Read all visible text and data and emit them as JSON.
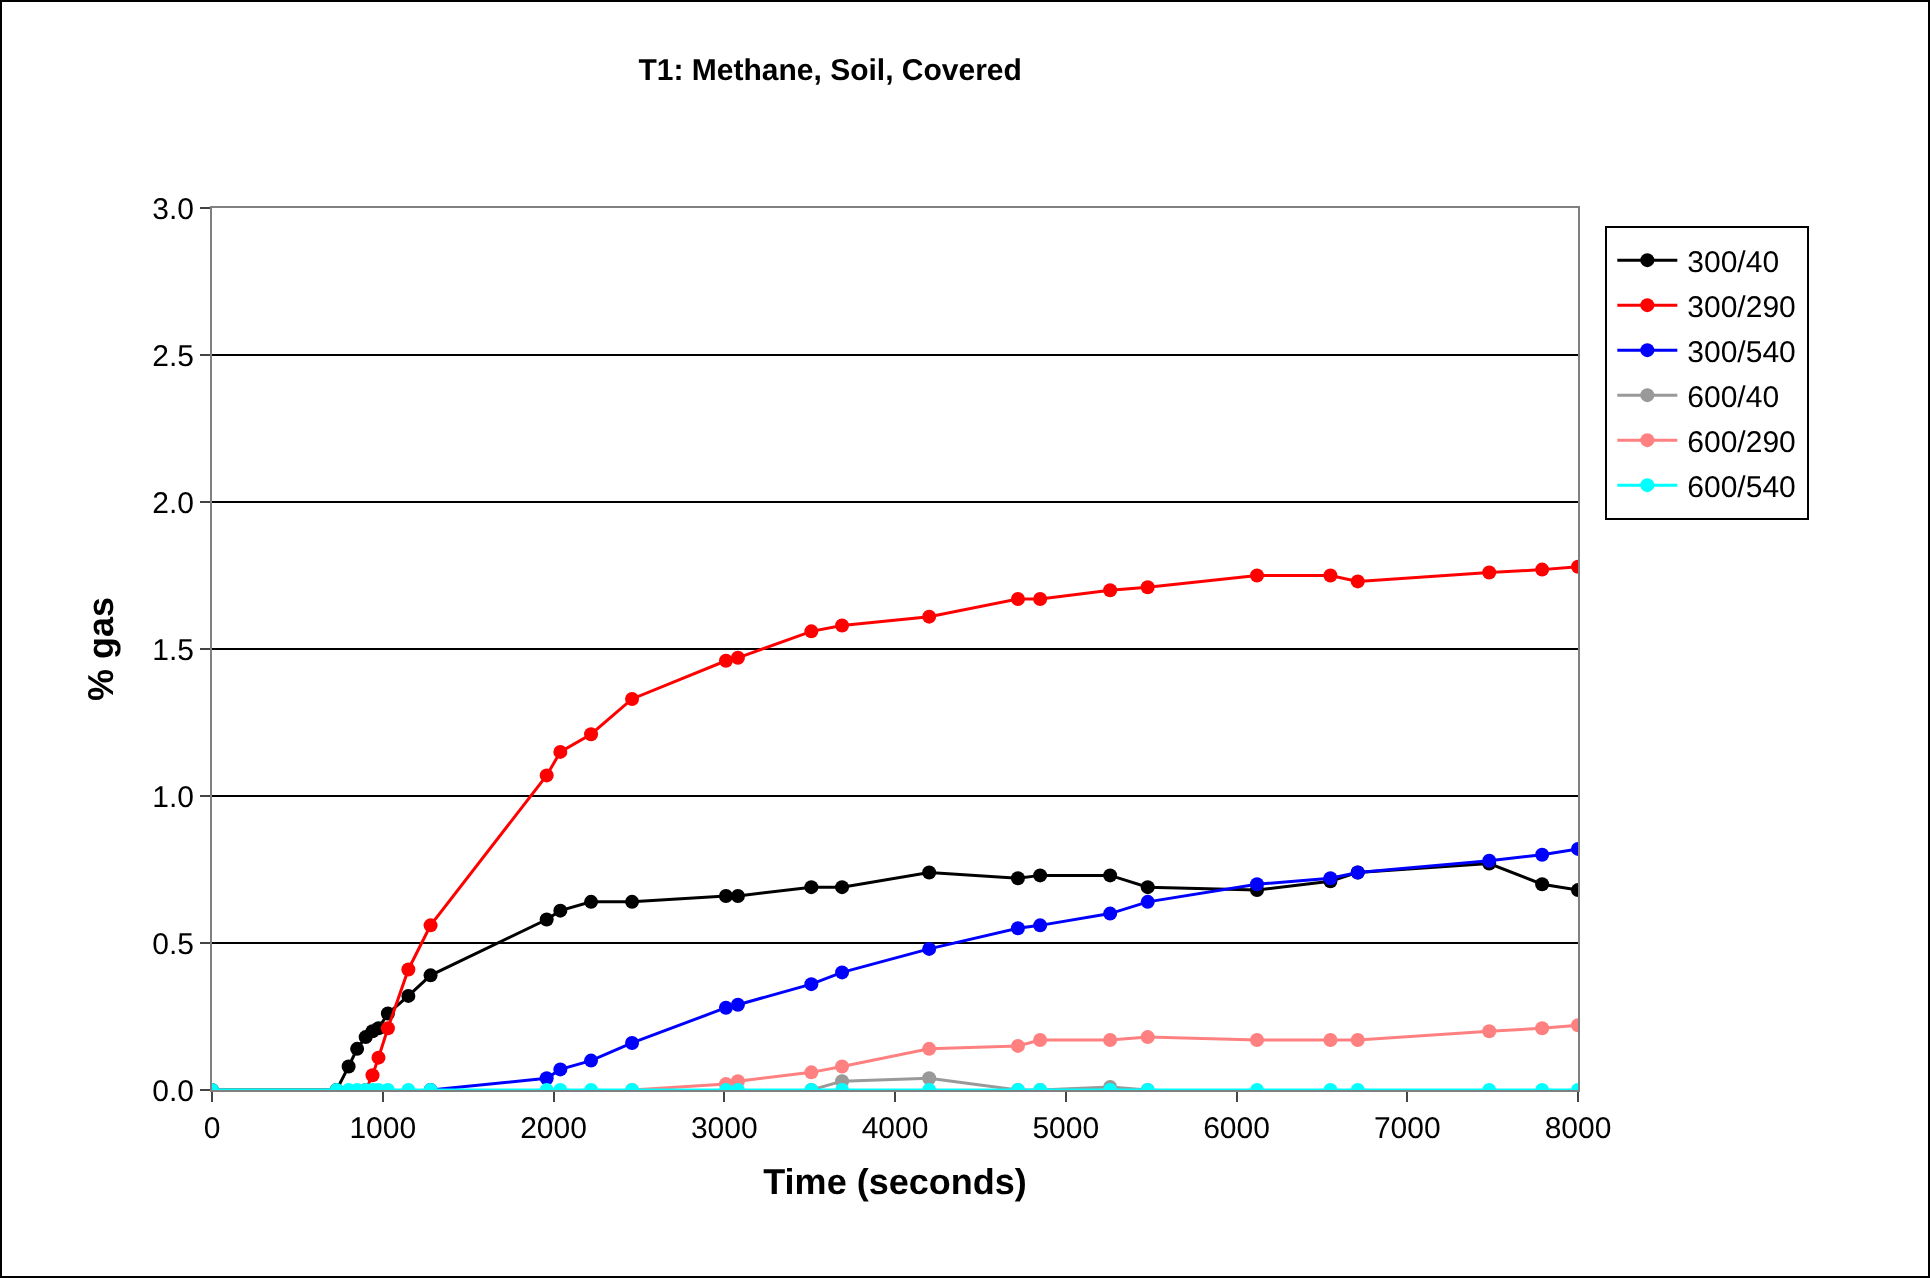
{
  "chart_data": {
    "type": "line",
    "title": "T1: Methane, Soil, Covered",
    "xlabel": "Time (seconds)",
    "ylabel": "% gas",
    "x": [
      0,
      730,
      800,
      850,
      900,
      940,
      975,
      1030,
      1150,
      1280,
      1960,
      2040,
      2220,
      2460,
      3010,
      3080,
      3510,
      3690,
      4200,
      4720,
      4850,
      5260,
      5480,
      6120,
      6550,
      6710,
      7480,
      7790,
      8000
    ],
    "series": [
      {
        "name": "300/40",
        "color": "#000000",
        "values": [
          0,
          0,
          0.08,
          0.14,
          0.18,
          0.2,
          0.21,
          0.26,
          0.32,
          0.39,
          0.58,
          0.61,
          0.64,
          0.64,
          0.66,
          0.66,
          0.69,
          0.69,
          0.74,
          0.72,
          0.73,
          0.73,
          0.69,
          0.68,
          0.71,
          0.74,
          0.77,
          0.7,
          0.68
        ]
      },
      {
        "name": "300/290",
        "color": "#ff0000",
        "values": [
          null,
          null,
          null,
          null,
          0,
          0.05,
          0.11,
          0.21,
          0.41,
          0.56,
          1.07,
          1.15,
          1.21,
          1.33,
          1.46,
          1.47,
          1.56,
          1.58,
          1.61,
          1.67,
          1.67,
          1.7,
          1.71,
          1.75,
          1.75,
          1.73,
          1.76,
          1.77,
          1.78
        ]
      },
      {
        "name": "300/540",
        "color": "#0000ff",
        "values": [
          null,
          null,
          null,
          null,
          null,
          null,
          null,
          null,
          null,
          0,
          0.04,
          0.07,
          0.1,
          0.16,
          0.28,
          0.29,
          0.36,
          0.4,
          0.48,
          0.55,
          0.56,
          0.6,
          0.64,
          0.7,
          0.72,
          0.74,
          0.78,
          0.8,
          0.82
        ]
      },
      {
        "name": "600/40",
        "color": "#999999",
        "values": [
          null,
          null,
          null,
          null,
          null,
          null,
          null,
          null,
          null,
          null,
          null,
          null,
          null,
          null,
          null,
          null,
          0,
          0.03,
          0.04,
          0,
          0,
          0.01,
          0,
          null,
          null,
          null,
          null,
          null,
          null
        ]
      },
      {
        "name": "600/290",
        "color": "#ff8080",
        "values": [
          null,
          null,
          null,
          null,
          null,
          null,
          null,
          null,
          null,
          null,
          null,
          null,
          null,
          0,
          0.02,
          0.03,
          0.06,
          0.08,
          0.14,
          0.15,
          0.17,
          0.17,
          0.18,
          0.17,
          0.17,
          0.17,
          0.2,
          0.21,
          0.22
        ]
      },
      {
        "name": "600/540",
        "color": "#00ffff",
        "values": [
          0,
          0,
          0,
          0,
          0,
          0,
          0,
          0,
          0,
          0,
          0,
          0,
          0,
          0,
          0,
          0,
          0,
          0,
          0,
          0,
          0,
          0,
          0,
          0,
          0,
          0,
          0,
          0,
          0
        ]
      }
    ],
    "xlim": [
      0,
      8000
    ],
    "xticks": [
      0,
      1000,
      2000,
      3000,
      4000,
      5000,
      6000,
      7000,
      8000
    ],
    "ylim": [
      0,
      3
    ],
    "yticks": [
      {
        "value": 0,
        "label": "0.0"
      },
      {
        "value": 0.5,
        "label": "0.5"
      },
      {
        "value": 1,
        "label": "1.0"
      },
      {
        "value": 1.5,
        "label": "1.5"
      },
      {
        "value": 2,
        "label": "2.0"
      },
      {
        "value": 2.5,
        "label": "2.5"
      },
      {
        "value": 3,
        "label": "3.0"
      }
    ],
    "grid": "y",
    "legend": "right",
    "marker": "circle",
    "line_style": "solid"
  }
}
